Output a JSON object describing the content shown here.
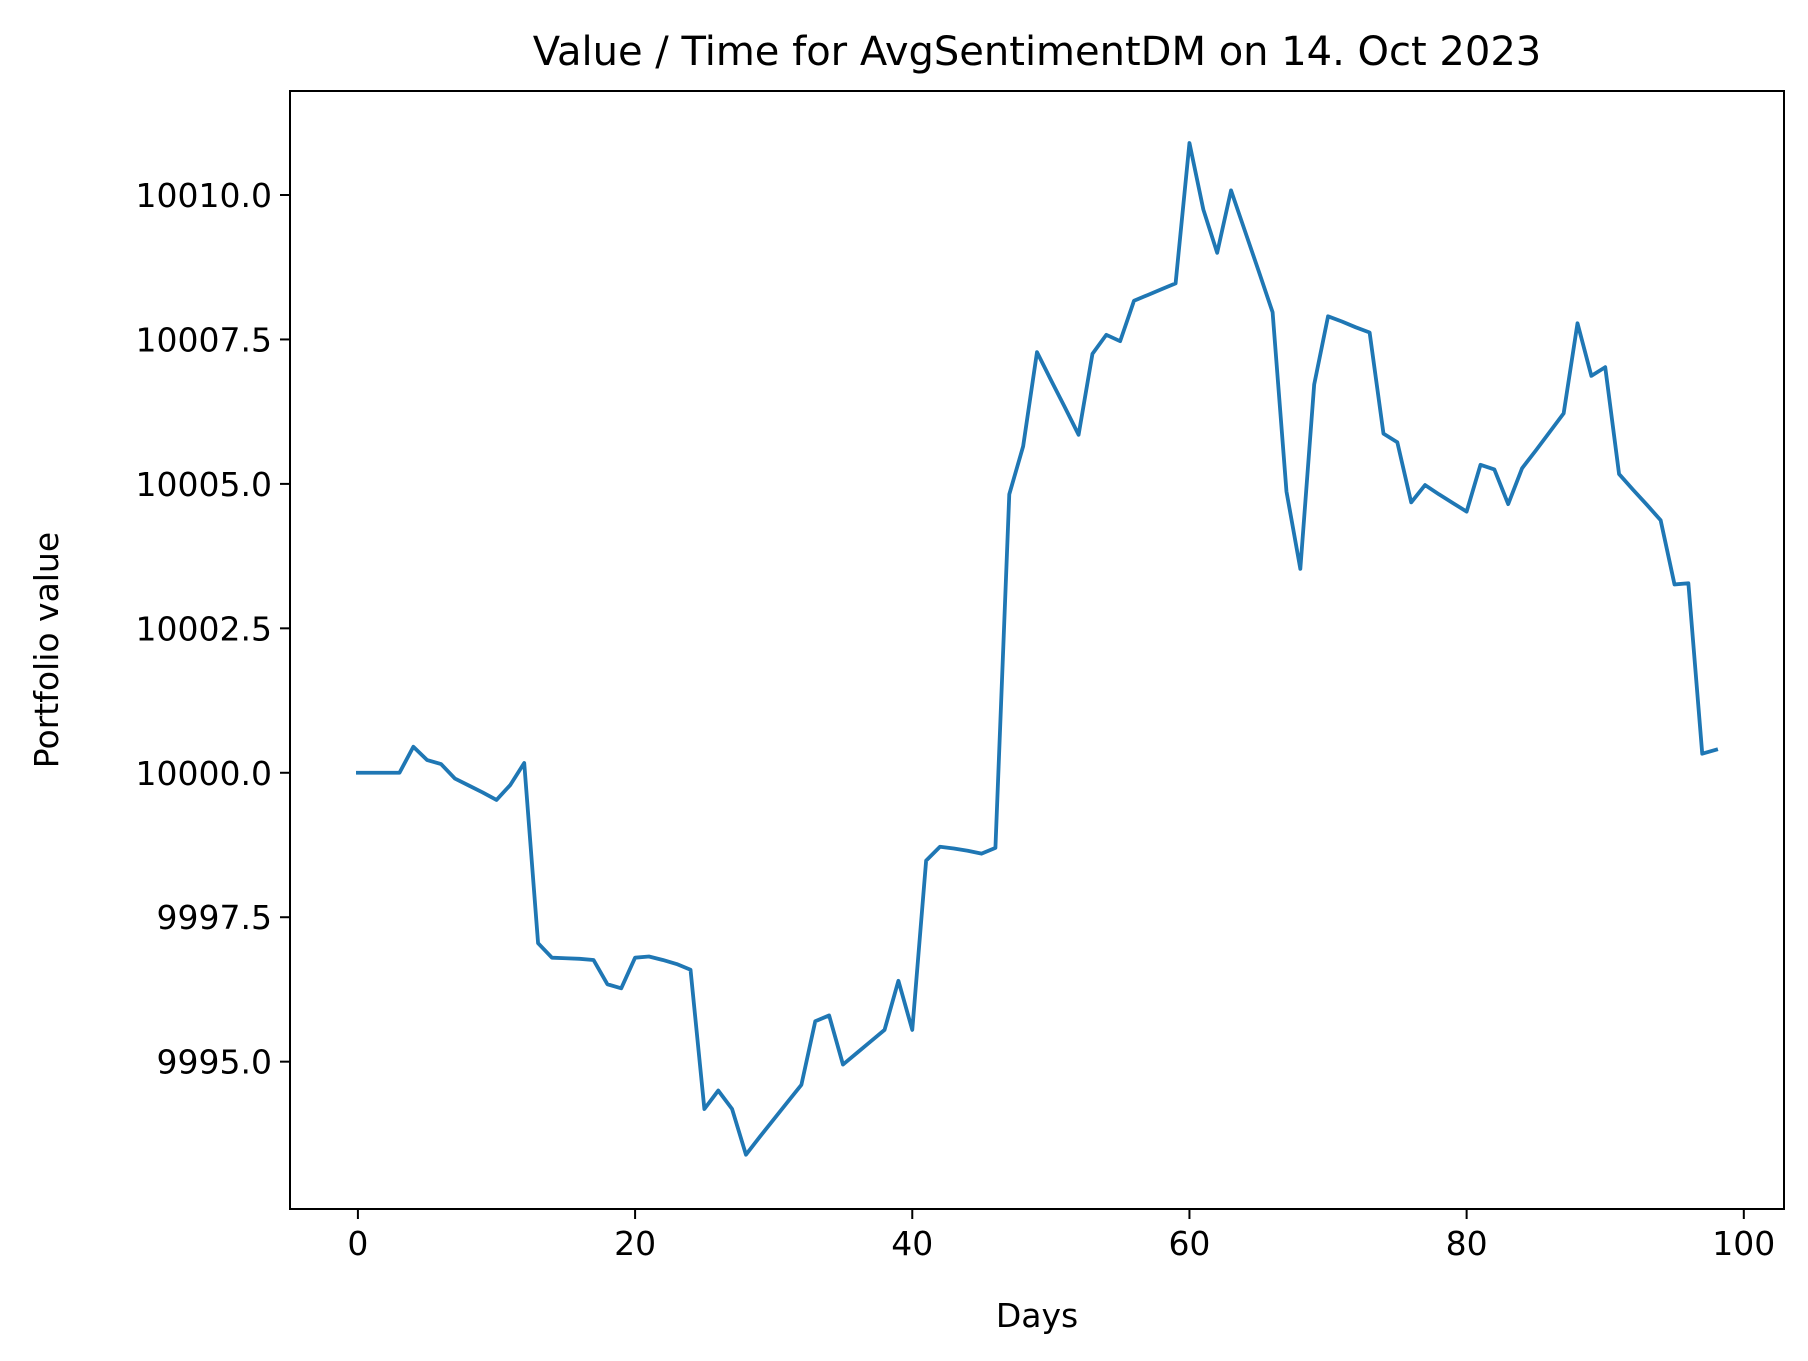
{
  "chart_data": {
    "type": "line",
    "title": "Value / Time for AvgSentimentDM on 14. Oct 2023",
    "xlabel": "Days",
    "ylabel": "Portfolio value",
    "xlim": [
      -4.9,
      102.9
    ],
    "ylim": [
      9992.45,
      10011.8
    ],
    "xticks": [
      0,
      20,
      40,
      60,
      80,
      100
    ],
    "xtick_labels": [
      "0",
      "20",
      "40",
      "60",
      "80",
      "100"
    ],
    "yticks": [
      9995.0,
      9997.5,
      10000.0,
      10002.5,
      10005.0,
      10007.5,
      10010.0
    ],
    "ytick_labels": [
      "9995.0",
      "9997.5",
      "10000.0",
      "10002.5",
      "10005.0",
      "10007.5",
      "10010.0"
    ],
    "grid": false,
    "series": [
      {
        "color": "#1f77b4",
        "x": [
          0,
          1,
          2,
          3,
          4,
          5,
          6,
          7,
          8,
          9,
          10,
          11,
          12,
          13,
          14,
          15,
          16,
          17,
          18,
          19,
          20,
          21,
          22,
          23,
          24,
          25,
          26,
          27,
          28,
          29,
          30,
          31,
          32,
          33,
          34,
          35,
          36,
          37,
          38,
          39,
          40,
          41,
          42,
          43,
          44,
          45,
          46,
          47,
          48,
          49,
          50,
          51,
          52,
          53,
          54,
          55,
          56,
          57,
          58,
          59,
          60,
          61,
          62,
          63,
          64,
          65,
          66,
          67,
          68,
          69,
          70,
          71,
          72,
          73,
          74,
          75,
          76,
          77,
          78,
          79,
          80,
          81,
          82,
          83,
          84,
          85,
          86,
          87,
          88,
          89,
          90,
          91,
          92,
          93,
          94,
          95,
          96,
          97,
          98
        ],
        "y": [
          10000.0,
          10000.0,
          10000.0,
          10000.0,
          10000.45,
          10000.22,
          10000.15,
          9999.9,
          9999.78,
          9999.66,
          9999.53,
          9999.79,
          10000.17,
          9997.05,
          9996.8,
          9996.79,
          9996.78,
          9996.76,
          9996.34,
          9996.27,
          9996.8,
          9996.82,
          9996.76,
          9996.69,
          9996.59,
          9994.18,
          9994.5,
          9994.18,
          9993.39,
          9993.7,
          9994.0,
          9994.3,
          9994.6,
          9995.7,
          9995.8,
          9994.95,
          9995.15,
          9995.35,
          9995.55,
          9996.4,
          9995.55,
          9998.48,
          9998.72,
          9998.69,
          9998.65,
          9998.6,
          9998.7,
          10004.82,
          10005.65,
          10007.28,
          10006.8,
          10006.33,
          10005.85,
          10007.25,
          10007.58,
          10007.47,
          10008.17,
          10008.27,
          10008.37,
          10008.47,
          10010.9,
          10009.75,
          10009.0,
          10010.08,
          10009.38,
          10008.68,
          10007.97,
          10004.87,
          10003.53,
          10006.72,
          10007.9,
          10007.81,
          10007.71,
          10007.62,
          10005.87,
          10005.72,
          10004.68,
          10004.98,
          10004.82,
          10004.67,
          10004.52,
          10005.33,
          10005.25,
          10004.65,
          10005.27,
          10005.58,
          10005.9,
          10006.22,
          10007.78,
          10006.87,
          10007.02,
          10005.17,
          10004.9,
          10004.64,
          10004.37,
          10003.26,
          10003.28,
          10000.33,
          10000.4
        ]
      }
    ]
  }
}
